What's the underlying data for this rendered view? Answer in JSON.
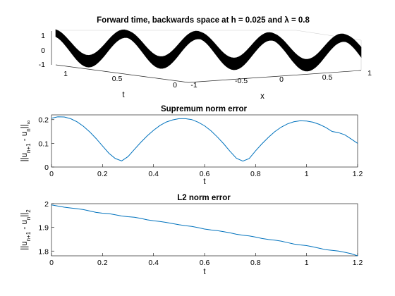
{
  "surface_plot": {
    "title": "Forward time, backwards space at h = 0.025 and λ = 0.8",
    "xlabel": "x",
    "ylabel": "t",
    "x_ticks": [
      "-1",
      "-0.5",
      "0",
      "0.5",
      "1"
    ],
    "t_ticks": [
      "1",
      "0.5",
      "0"
    ],
    "z_ticks": [
      "1",
      "0",
      "-1"
    ]
  },
  "chart_data": [
    {
      "type": "line",
      "title": "Supremum norm error",
      "xlabel": "t",
      "ylabel": "||u_{n+1} - u_n||_∞",
      "xlim": [
        0,
        1.2
      ],
      "ylim": [
        0,
        0.22
      ],
      "x_ticks": [
        "0",
        "0.2",
        "0.4",
        "0.6",
        "0.8",
        "1",
        "1.2"
      ],
      "y_ticks": [
        "0",
        "0.1",
        "0.2"
      ],
      "x": [
        0,
        0.025,
        0.05,
        0.075,
        0.1,
        0.125,
        0.15,
        0.175,
        0.2,
        0.225,
        0.25,
        0.275,
        0.3,
        0.325,
        0.35,
        0.375,
        0.4,
        0.425,
        0.45,
        0.475,
        0.5,
        0.525,
        0.55,
        0.575,
        0.6,
        0.625,
        0.65,
        0.675,
        0.7,
        0.725,
        0.75,
        0.775,
        0.8,
        0.825,
        0.85,
        0.875,
        0.9,
        0.925,
        0.95,
        0.975,
        1.0,
        1.025,
        1.05,
        1.075,
        1.1,
        1.125,
        1.15,
        1.175,
        1.2
      ],
      "y": [
        0.206,
        0.212,
        0.211,
        0.204,
        0.191,
        0.172,
        0.148,
        0.12,
        0.089,
        0.058,
        0.036,
        0.026,
        0.044,
        0.074,
        0.104,
        0.131,
        0.155,
        0.175,
        0.19,
        0.199,
        0.204,
        0.204,
        0.2,
        0.189,
        0.174,
        0.153,
        0.127,
        0.098,
        0.066,
        0.037,
        0.025,
        0.036,
        0.068,
        0.098,
        0.125,
        0.149,
        0.168,
        0.182,
        0.191,
        0.195,
        0.194,
        0.189,
        0.18,
        0.167,
        0.15,
        0.145,
        0.136,
        0.118,
        0.1
      ],
      "grid": false
    },
    {
      "type": "line",
      "title": "L2 norm error",
      "xlabel": "t",
      "ylabel": "||u_{n+1} - u_n||_2",
      "xlim": [
        0,
        1.2
      ],
      "ylim": [
        1.78,
        2.0
      ],
      "x_ticks": [
        "0",
        "0.2",
        "0.4",
        "0.6",
        "0.8",
        "1",
        "1.2"
      ],
      "y_ticks": [
        "2",
        "1.9",
        "1.8"
      ],
      "x": [
        0,
        0.025,
        0.05,
        0.075,
        0.1,
        0.125,
        0.15,
        0.175,
        0.2,
        0.225,
        0.25,
        0.275,
        0.3,
        0.325,
        0.35,
        0.375,
        0.4,
        0.425,
        0.45,
        0.475,
        0.5,
        0.525,
        0.55,
        0.575,
        0.6,
        0.625,
        0.65,
        0.675,
        0.7,
        0.725,
        0.75,
        0.775,
        0.8,
        0.825,
        0.85,
        0.875,
        0.9,
        0.925,
        0.95,
        0.975,
        1.0,
        1.025,
        1.05,
        1.075,
        1.1,
        1.125,
        1.15,
        1.175,
        1.2
      ],
      "y": [
        1.995,
        1.99,
        1.985,
        1.982,
        1.979,
        1.975,
        1.969,
        1.963,
        1.96,
        1.958,
        1.953,
        1.948,
        1.945,
        1.943,
        1.938,
        1.932,
        1.928,
        1.925,
        1.921,
        1.916,
        1.911,
        1.907,
        1.904,
        1.899,
        1.893,
        1.889,
        1.886,
        1.882,
        1.877,
        1.871,
        1.867,
        1.864,
        1.859,
        1.853,
        1.849,
        1.846,
        1.842,
        1.836,
        1.83,
        1.826,
        1.823,
        1.818,
        1.812,
        1.806,
        1.803,
        1.8,
        1.795,
        1.789,
        1.78
      ],
      "grid": false
    }
  ]
}
